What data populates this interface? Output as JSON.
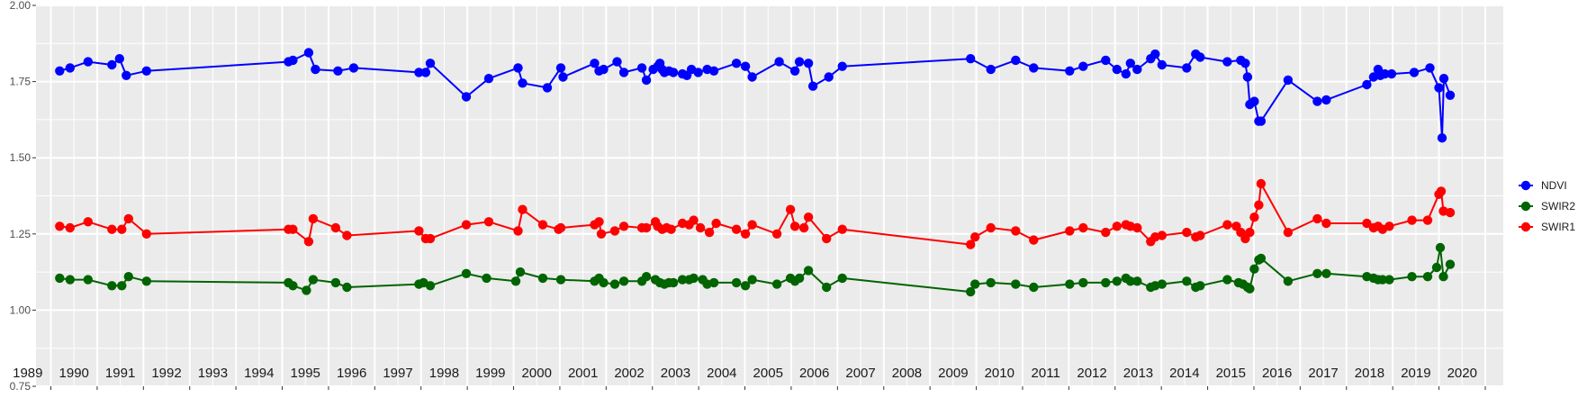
{
  "chart_data": {
    "type": "line",
    "title": "",
    "xlabel": "",
    "ylabel": "",
    "ylim": [
      0.75,
      2.0
    ],
    "yticks": [
      "0.75",
      "1.00",
      "1.25",
      "1.50",
      "1.75",
      "2.00"
    ],
    "year_labels": [
      "1989",
      "1990",
      "1991",
      "1992",
      "1993",
      "1994",
      "1995",
      "1996",
      "1997",
      "1998",
      "1999",
      "2000",
      "2001",
      "2002",
      "2003",
      "2004",
      "2005",
      "2006",
      "2007",
      "2008",
      "2009",
      "2010",
      "2011",
      "2012",
      "2013",
      "2014",
      "2015",
      "2016",
      "2017",
      "2018",
      "2019",
      "2020"
    ],
    "grid": true,
    "legend_position": "right",
    "legend": [
      "NDVI",
      "SWIR2",
      "SWIR1"
    ],
    "series": [
      {
        "name": "NDVI",
        "color": "#0000ff",
        "points": [
          [
            1988.92,
            1.785
          ],
          [
            1989.15,
            1.795
          ],
          [
            1989.55,
            1.815
          ],
          [
            1990.08,
            1.805
          ],
          [
            1990.25,
            1.825
          ],
          [
            1990.4,
            1.77
          ],
          [
            1990.85,
            1.785
          ],
          [
            1994.0,
            1.815
          ],
          [
            1994.1,
            1.82
          ],
          [
            1994.45,
            1.845
          ],
          [
            1994.6,
            1.79
          ],
          [
            1995.1,
            1.785
          ],
          [
            1995.45,
            1.795
          ],
          [
            1996.9,
            1.78
          ],
          [
            1997.05,
            1.78
          ],
          [
            1997.15,
            1.81
          ],
          [
            1997.95,
            1.7
          ],
          [
            1998.45,
            1.76
          ],
          [
            1999.1,
            1.795
          ],
          [
            1999.2,
            1.745
          ],
          [
            1999.75,
            1.73
          ],
          [
            2000.05,
            1.795
          ],
          [
            2000.1,
            1.765
          ],
          [
            2000.8,
            1.81
          ],
          [
            2000.9,
            1.785
          ],
          [
            2001.0,
            1.79
          ],
          [
            2001.3,
            1.815
          ],
          [
            2001.45,
            1.78
          ],
          [
            2001.85,
            1.795
          ],
          [
            2001.95,
            1.755
          ],
          [
            2002.1,
            1.79
          ],
          [
            2002.2,
            1.8
          ],
          [
            2002.25,
            1.81
          ],
          [
            2002.3,
            1.79
          ],
          [
            2002.35,
            1.78
          ],
          [
            2002.45,
            1.785
          ],
          [
            2002.55,
            1.78
          ],
          [
            2002.75,
            1.775
          ],
          [
            2002.85,
            1.77
          ],
          [
            2002.95,
            1.79
          ],
          [
            2003.1,
            1.78
          ],
          [
            2003.3,
            1.79
          ],
          [
            2003.45,
            1.785
          ],
          [
            2003.95,
            1.81
          ],
          [
            2004.15,
            1.8
          ],
          [
            2004.3,
            1.765
          ],
          [
            2004.9,
            1.815
          ],
          [
            2005.25,
            1.785
          ],
          [
            2005.35,
            1.815
          ],
          [
            2005.55,
            1.81
          ],
          [
            2005.65,
            1.735
          ],
          [
            2006.0,
            1.765
          ],
          [
            2006.3,
            1.8
          ],
          [
            2009.15,
            1.825
          ],
          [
            2009.6,
            1.79
          ],
          [
            2010.15,
            1.82
          ],
          [
            2010.55,
            1.795
          ],
          [
            2011.35,
            1.785
          ],
          [
            2011.65,
            1.8
          ],
          [
            2012.15,
            1.82
          ],
          [
            2012.4,
            1.79
          ],
          [
            2012.6,
            1.775
          ],
          [
            2012.7,
            1.81
          ],
          [
            2012.85,
            1.79
          ],
          [
            2013.15,
            1.825
          ],
          [
            2013.25,
            1.84
          ],
          [
            2013.4,
            1.805
          ],
          [
            2013.95,
            1.795
          ],
          [
            2014.15,
            1.84
          ],
          [
            2014.25,
            1.83
          ],
          [
            2014.85,
            1.815
          ],
          [
            2015.15,
            1.82
          ],
          [
            2015.25,
            1.81
          ],
          [
            2015.3,
            1.765
          ],
          [
            2015.35,
            1.675
          ],
          [
            2015.45,
            1.685
          ],
          [
            2015.55,
            1.62
          ],
          [
            2015.6,
            1.62
          ],
          [
            2016.2,
            1.755
          ],
          [
            2016.85,
            1.685
          ],
          [
            2017.05,
            1.69
          ],
          [
            2017.95,
            1.74
          ],
          [
            2018.1,
            1.765
          ],
          [
            2018.2,
            1.79
          ],
          [
            2018.25,
            1.77
          ],
          [
            2018.35,
            1.775
          ],
          [
            2018.5,
            1.775
          ],
          [
            2019.0,
            1.78
          ],
          [
            2019.35,
            1.795
          ],
          [
            2019.55,
            1.73
          ],
          [
            2019.62,
            1.565
          ],
          [
            2019.66,
            1.76
          ],
          [
            2019.8,
            1.705
          ]
        ]
      },
      {
        "name": "SWIR2",
        "color": "#006400",
        "points": [
          [
            1988.92,
            1.105
          ],
          [
            1989.15,
            1.1
          ],
          [
            1989.55,
            1.1
          ],
          [
            1990.08,
            1.08
          ],
          [
            1990.3,
            1.08
          ],
          [
            1990.45,
            1.11
          ],
          [
            1990.85,
            1.095
          ],
          [
            1994.0,
            1.09
          ],
          [
            1994.1,
            1.08
          ],
          [
            1994.4,
            1.065
          ],
          [
            1994.55,
            1.1
          ],
          [
            1995.05,
            1.09
          ],
          [
            1995.3,
            1.075
          ],
          [
            1996.9,
            1.085
          ],
          [
            1997.0,
            1.09
          ],
          [
            1997.15,
            1.08
          ],
          [
            1997.95,
            1.12
          ],
          [
            1998.4,
            1.105
          ],
          [
            1999.05,
            1.095
          ],
          [
            1999.15,
            1.125
          ],
          [
            1999.65,
            1.105
          ],
          [
            2000.05,
            1.1
          ],
          [
            2000.8,
            1.095
          ],
          [
            2000.9,
            1.105
          ],
          [
            2001.0,
            1.09
          ],
          [
            2001.25,
            1.085
          ],
          [
            2001.45,
            1.095
          ],
          [
            2001.85,
            1.095
          ],
          [
            2001.95,
            1.11
          ],
          [
            2002.15,
            1.1
          ],
          [
            2002.25,
            1.09
          ],
          [
            2002.35,
            1.085
          ],
          [
            2002.45,
            1.09
          ],
          [
            2002.55,
            1.09
          ],
          [
            2002.75,
            1.1
          ],
          [
            2002.9,
            1.1
          ],
          [
            2003.0,
            1.105
          ],
          [
            2003.2,
            1.1
          ],
          [
            2003.3,
            1.085
          ],
          [
            2003.45,
            1.09
          ],
          [
            2003.95,
            1.09
          ],
          [
            2004.15,
            1.08
          ],
          [
            2004.3,
            1.1
          ],
          [
            2004.85,
            1.085
          ],
          [
            2005.15,
            1.105
          ],
          [
            2005.25,
            1.095
          ],
          [
            2005.35,
            1.105
          ],
          [
            2005.55,
            1.13
          ],
          [
            2005.95,
            1.075
          ],
          [
            2006.3,
            1.105
          ],
          [
            2009.15,
            1.06
          ],
          [
            2009.25,
            1.085
          ],
          [
            2009.6,
            1.09
          ],
          [
            2010.15,
            1.085
          ],
          [
            2010.55,
            1.075
          ],
          [
            2011.35,
            1.085
          ],
          [
            2011.65,
            1.09
          ],
          [
            2012.15,
            1.09
          ],
          [
            2012.4,
            1.095
          ],
          [
            2012.6,
            1.105
          ],
          [
            2012.7,
            1.095
          ],
          [
            2012.85,
            1.095
          ],
          [
            2013.15,
            1.075
          ],
          [
            2013.25,
            1.08
          ],
          [
            2013.4,
            1.085
          ],
          [
            2013.95,
            1.095
          ],
          [
            2014.15,
            1.075
          ],
          [
            2014.25,
            1.08
          ],
          [
            2014.85,
            1.1
          ],
          [
            2015.1,
            1.09
          ],
          [
            2015.2,
            1.085
          ],
          [
            2015.3,
            1.075
          ],
          [
            2015.35,
            1.07
          ],
          [
            2015.45,
            1.135
          ],
          [
            2015.55,
            1.165
          ],
          [
            2015.6,
            1.17
          ],
          [
            2016.2,
            1.095
          ],
          [
            2016.85,
            1.12
          ],
          [
            2017.05,
            1.12
          ],
          [
            2017.95,
            1.11
          ],
          [
            2018.1,
            1.105
          ],
          [
            2018.2,
            1.1
          ],
          [
            2018.3,
            1.1
          ],
          [
            2018.45,
            1.1
          ],
          [
            2018.95,
            1.11
          ],
          [
            2019.3,
            1.11
          ],
          [
            2019.5,
            1.14
          ],
          [
            2019.58,
            1.205
          ],
          [
            2019.65,
            1.11
          ],
          [
            2019.8,
            1.15
          ]
        ]
      },
      {
        "name": "SWIR1",
        "color": "#ff0000",
        "points": [
          [
            1988.92,
            1.275
          ],
          [
            1989.15,
            1.27
          ],
          [
            1989.55,
            1.29
          ],
          [
            1990.08,
            1.265
          ],
          [
            1990.3,
            1.265
          ],
          [
            1990.45,
            1.3
          ],
          [
            1990.85,
            1.25
          ],
          [
            1994.0,
            1.265
          ],
          [
            1994.1,
            1.265
          ],
          [
            1994.45,
            1.225
          ],
          [
            1994.55,
            1.3
          ],
          [
            1995.05,
            1.27
          ],
          [
            1995.3,
            1.245
          ],
          [
            1996.9,
            1.26
          ],
          [
            1997.05,
            1.235
          ],
          [
            1997.15,
            1.235
          ],
          [
            1997.95,
            1.28
          ],
          [
            1998.45,
            1.29
          ],
          [
            1999.1,
            1.26
          ],
          [
            1999.2,
            1.33
          ],
          [
            1999.65,
            1.28
          ],
          [
            2000.0,
            1.265
          ],
          [
            2000.05,
            1.27
          ],
          [
            2000.8,
            1.28
          ],
          [
            2000.9,
            1.29
          ],
          [
            2000.95,
            1.25
          ],
          [
            2001.25,
            1.26
          ],
          [
            2001.45,
            1.275
          ],
          [
            2001.85,
            1.27
          ],
          [
            2001.95,
            1.27
          ],
          [
            2002.15,
            1.29
          ],
          [
            2002.2,
            1.275
          ],
          [
            2002.3,
            1.265
          ],
          [
            2002.4,
            1.27
          ],
          [
            2002.5,
            1.265
          ],
          [
            2002.75,
            1.285
          ],
          [
            2002.9,
            1.28
          ],
          [
            2003.0,
            1.295
          ],
          [
            2003.15,
            1.27
          ],
          [
            2003.35,
            1.255
          ],
          [
            2003.5,
            1.285
          ],
          [
            2003.95,
            1.265
          ],
          [
            2004.15,
            1.25
          ],
          [
            2004.3,
            1.28
          ],
          [
            2004.85,
            1.25
          ],
          [
            2005.15,
            1.33
          ],
          [
            2005.25,
            1.275
          ],
          [
            2005.45,
            1.27
          ],
          [
            2005.55,
            1.305
          ],
          [
            2005.95,
            1.235
          ],
          [
            2006.3,
            1.265
          ],
          [
            2009.15,
            1.215
          ],
          [
            2009.25,
            1.24
          ],
          [
            2009.6,
            1.27
          ],
          [
            2010.15,
            1.26
          ],
          [
            2010.55,
            1.23
          ],
          [
            2011.35,
            1.26
          ],
          [
            2011.65,
            1.27
          ],
          [
            2012.15,
            1.255
          ],
          [
            2012.4,
            1.275
          ],
          [
            2012.6,
            1.28
          ],
          [
            2012.7,
            1.275
          ],
          [
            2012.85,
            1.27
          ],
          [
            2013.15,
            1.225
          ],
          [
            2013.25,
            1.24
          ],
          [
            2013.4,
            1.245
          ],
          [
            2013.95,
            1.255
          ],
          [
            2014.15,
            1.24
          ],
          [
            2014.25,
            1.245
          ],
          [
            2014.85,
            1.28
          ],
          [
            2015.05,
            1.275
          ],
          [
            2015.15,
            1.255
          ],
          [
            2015.25,
            1.235
          ],
          [
            2015.35,
            1.255
          ],
          [
            2015.45,
            1.305
          ],
          [
            2015.55,
            1.345
          ],
          [
            2015.6,
            1.415
          ],
          [
            2016.2,
            1.255
          ],
          [
            2016.85,
            1.3
          ],
          [
            2017.05,
            1.285
          ],
          [
            2017.95,
            1.285
          ],
          [
            2018.1,
            1.27
          ],
          [
            2018.2,
            1.275
          ],
          [
            2018.3,
            1.265
          ],
          [
            2018.45,
            1.275
          ],
          [
            2018.95,
            1.295
          ],
          [
            2019.3,
            1.295
          ],
          [
            2019.55,
            1.38
          ],
          [
            2019.6,
            1.39
          ],
          [
            2019.65,
            1.325
          ],
          [
            2019.8,
            1.32
          ]
        ]
      }
    ]
  }
}
